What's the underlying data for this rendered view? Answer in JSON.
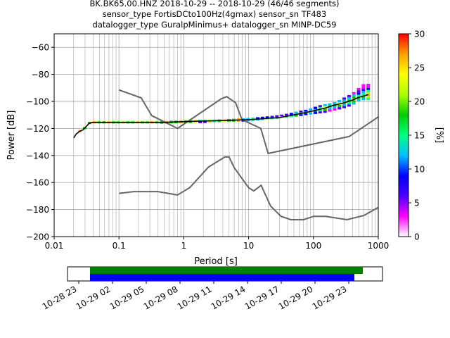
{
  "title": {
    "line1": "BK.BK65.00.HNZ   2018-10-29 -- 2018-10-29  (46/46 segments)",
    "line2": "sensor_type FortisDCto100Hz(4gmax) sensor_sn TF483",
    "line3": "datalogger_type GuralpMinimus+ datalogger_sn MINP-DC59"
  },
  "chart_data": [
    {
      "type": "heatmap",
      "name": "probabilistic-psd",
      "xlabel": "Period [s]",
      "ylabel": "Power [dB]",
      "xscale": "log",
      "xlim": [
        0.01,
        1000
      ],
      "ylim": [
        -200,
        -50
      ],
      "xticks": [
        0.01,
        0.1,
        1,
        10,
        100,
        1000
      ],
      "xticklabels": [
        "0.01",
        "0.1",
        "1",
        "10",
        "100",
        "1000"
      ],
      "yticks": [
        -200,
        -180,
        -160,
        -140,
        -120,
        -100,
        -80,
        -60
      ],
      "grid": true,
      "colorbar": {
        "label": "[%]",
        "range": [
          0,
          30
        ],
        "ticks": [
          0,
          5,
          10,
          15,
          20,
          25,
          30
        ],
        "colormap": [
          "#ffffff",
          "#ff00ff",
          "#4b00ff",
          "#0000ff",
          "#00bfff",
          "#00ff80",
          "#00cc00",
          "#aaff00",
          "#ffff00",
          "#ffa000",
          "#ff0000"
        ]
      },
      "psd_trace": {
        "period": [
          0.02,
          0.022,
          0.025,
          0.028,
          0.032,
          0.035,
          0.04,
          0.05,
          0.1,
          0.2,
          0.5,
          1,
          2,
          5,
          10,
          15,
          20,
          30,
          50,
          80,
          100,
          150,
          200,
          300,
          400,
          500,
          700
        ],
        "power": [
          -127,
          -124,
          -122,
          -121,
          -118,
          -116,
          -115.5,
          -115.5,
          -115.5,
          -115.5,
          -115.5,
          -115,
          -114.5,
          -114,
          -113.5,
          -113,
          -112.5,
          -112,
          -110,
          -108,
          -107,
          -105,
          -103,
          -101,
          -99,
          -97,
          -95
        ]
      },
      "spread": {
        "period": [
          0.4,
          0.5,
          1,
          2,
          3,
          5,
          8,
          12,
          15,
          20,
          25,
          30,
          40,
          50,
          60,
          80,
          100,
          120,
          150,
          200,
          250,
          300,
          400,
          500,
          600
        ],
        "low": [
          -116.5,
          -116.5,
          -116,
          -116,
          -115.5,
          -115,
          -115,
          -114.5,
          -114,
          -113.5,
          -113,
          -112.5,
          -112,
          -111.5,
          -111,
          -110,
          -109.5,
          -109,
          -108.5,
          -107,
          -106,
          -105,
          -103,
          -100,
          -99
        ],
        "high": [
          -114.5,
          -114.5,
          -114,
          -113.5,
          -113.5,
          -113,
          -112.5,
          -112,
          -111.5,
          -111,
          -110.5,
          -110,
          -109,
          -108,
          -107,
          -106,
          -104.5,
          -103,
          -102,
          -101,
          -99,
          -97,
          -94,
          -90,
          -87
        ]
      },
      "nhnm": {
        "period": [
          0.1,
          0.22,
          0.32,
          0.8,
          3.8,
          4.6,
          6.3,
          7.9,
          15.4,
          20,
          354.8,
          1000
        ],
        "power": [
          -91.5,
          -97.4,
          -110.5,
          -120,
          -98,
          -96.5,
          -101,
          -113.5,
          -120,
          -138.5,
          -126,
          -111.5
        ]
      },
      "nlnm": {
        "period": [
          0.1,
          0.17,
          0.4,
          0.8,
          1.24,
          2.4,
          4.3,
          5,
          6,
          10,
          12,
          15.6,
          21.9,
          31.6,
          45,
          70,
          101,
          154,
          328,
          600,
          1000
        ],
        "power": [
          -168,
          -166.7,
          -166.7,
          -169.2,
          -163.7,
          -148.6,
          -141.1,
          -141.1,
          -149,
          -163.8,
          -166.2,
          -162.1,
          -177.5,
          -185,
          -187.5,
          -187.5,
          -185,
          -185,
          -187.5,
          -184.4,
          -178.4
        ]
      }
    },
    {
      "type": "bar",
      "name": "data-availability",
      "xlim": [
        "2018-10-28 22:00",
        "2018-10-30 02:00"
      ],
      "xticklabels": [
        "10-28 23",
        "10-29 02",
        "10-29 05",
        "10-29 08",
        "10-29 11",
        "10-29 14",
        "10-29 17",
        "10-29 20",
        "10-29 23"
      ],
      "xticks": [
        "2018-10-28 23:00",
        "2018-10-29 02:00",
        "2018-10-29 05:00",
        "2018-10-29 08:00",
        "2018-10-29 11:00",
        "2018-10-29 14:00",
        "2018-10-29 17:00",
        "2018-10-29 20:00",
        "2018-10-29 23:00"
      ],
      "series": [
        {
          "start": "2018-10-29 00:00",
          "end": "2018-10-30 00:15",
          "color": "#008000"
        },
        {
          "start": "2018-10-29 00:00",
          "end": "2018-10-29 23:30",
          "color": "#0000ff"
        }
      ]
    }
  ]
}
